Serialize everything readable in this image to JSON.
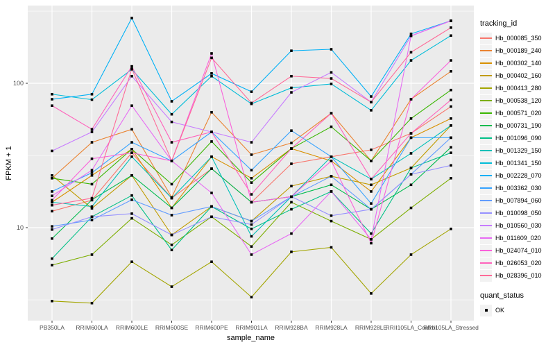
{
  "chart_data": {
    "type": "line",
    "title": "",
    "xlabel": "sample_name",
    "ylabel": "FPKM + 1",
    "legend_title": "tracking_id",
    "legend_position": "right",
    "grid": true,
    "y_scale": "log10",
    "ylim": [
      2.3,
      345
    ],
    "y_tick_values": [
      100,
      10
    ],
    "y_tick_labels": [
      "100",
      "10"
    ],
    "y_minor_gridlines": [
      316,
      31.6,
      3.16
    ],
    "point_shape": "square",
    "colors": {
      "panel_bg": "#EBEBEB",
      "grid": "#FFFFFF",
      "tick_text": "#4D4D4D",
      "tick_mark": "#333333",
      "axis_title_text": "#000000",
      "point": "#000000",
      "legend_key_bg": "#F2F2F2"
    },
    "categories": [
      "PB350LA",
      "RRIM600LA",
      "RRIM600LE",
      "RRIM600SE",
      "RRIM600PE",
      "RRIM901LA",
      "RRIM928BA",
      "RRIM928LA",
      "RRIM928LE",
      "RRII105LA_Control",
      "RRII105LA_Stressed"
    ],
    "series": [
      {
        "id": "Hb_000085_350",
        "color": "#F8766D",
        "quant_status": "OK",
        "values": [
          13.0,
          15.5,
          33,
          16,
          25.6,
          15,
          27.7,
          31,
          34.6,
          45,
          69
        ]
      },
      {
        "id": "Hb_000189_240",
        "color": "#EA8331",
        "quant_status": "OK",
        "values": [
          22,
          39,
          48,
          16.2,
          63,
          32,
          38.6,
          62,
          29,
          77.6,
          121
        ]
      },
      {
        "id": "Hb_000302_140",
        "color": "#D89000",
        "quant_status": "OK",
        "values": [
          15.0,
          23,
          35,
          13.7,
          31,
          22,
          35.3,
          29,
          17.8,
          42,
          57
        ]
      },
      {
        "id": "Hb_000402_160",
        "color": "#C09B00",
        "quant_status": "OK",
        "values": [
          23,
          13.6,
          23,
          8.9,
          14,
          11.1,
          19.4,
          22.7,
          19.8,
          25.9,
          51
        ]
      },
      {
        "id": "Hb_000413_280",
        "color": "#A3A500",
        "quant_status": "OK",
        "values": [
          3.1,
          3.0,
          5.8,
          3.9,
          5.8,
          3.3,
          6.8,
          7.3,
          3.5,
          6.5,
          9.8
        ]
      },
      {
        "id": "Hb_000538_120",
        "color": "#7CAE00",
        "quant_status": "OK",
        "values": [
          5.5,
          6.5,
          11.6,
          7.6,
          11.9,
          7.4,
          15,
          11.1,
          8.3,
          13.7,
          22
        ]
      },
      {
        "id": "Hb_000571_020",
        "color": "#39B600",
        "quant_status": "OK",
        "values": [
          22,
          20,
          35,
          20,
          39.5,
          20.5,
          35.3,
          50,
          29,
          57,
          89.8
        ]
      },
      {
        "id": "Hb_000731_190",
        "color": "#00BB4E",
        "quant_status": "OK",
        "values": [
          8.4,
          15.6,
          23,
          13.7,
          25.6,
          15,
          16.4,
          19.8,
          13.4,
          19.8,
          36
        ]
      },
      {
        "id": "Hb_001096_090",
        "color": "#00C087",
        "quant_status": "OK",
        "values": [
          6.1,
          11.9,
          16.7,
          7.0,
          14,
          9.8,
          13.4,
          17.8,
          9.1,
          25.9,
          33
        ]
      },
      {
        "id": "Hb_001329_150",
        "color": "#00C0B8",
        "quant_status": "OK",
        "values": [
          15.0,
          14,
          31,
          16,
          31,
          8.7,
          16.4,
          31,
          21.7,
          32.7,
          51
        ]
      },
      {
        "id": "Hb_001341_150",
        "color": "#00BCD8",
        "quant_status": "OK",
        "values": [
          84,
          77,
          125,
          61,
          112,
          72,
          93,
          99,
          65,
          144,
          214
        ]
      },
      {
        "id": "Hb_002228_070",
        "color": "#00B0F6",
        "quant_status": "OK",
        "values": [
          77.5,
          84,
          283,
          75,
          117,
          87.4,
          168,
          172,
          81,
          220,
          271
        ]
      },
      {
        "id": "Hb_003362_030",
        "color": "#35A2FF",
        "quant_status": "OK",
        "values": [
          17.8,
          24,
          39,
          29,
          46,
          25,
          47,
          31,
          14.7,
          42,
          42
        ]
      },
      {
        "id": "Hb_007894_060",
        "color": "#619CFF",
        "quant_status": "OK",
        "values": [
          10.2,
          11.3,
          15.6,
          12.2,
          14,
          11.1,
          16.4,
          22.7,
          13.4,
          23.4,
          42
        ]
      },
      {
        "id": "Hb_010098_050",
        "color": "#9590FF",
        "quant_status": "OK",
        "values": [
          9.7,
          11.9,
          12.5,
          8.9,
          11.9,
          10.5,
          16.4,
          12.1,
          13.4,
          23.4,
          27
        ]
      },
      {
        "id": "Hb_010560_030",
        "color": "#C77CFF",
        "quant_status": "OK",
        "values": [
          34,
          46,
          112,
          54,
          46,
          39,
          86.5,
          119,
          74,
          213,
          271
        ]
      },
      {
        "id": "Hb_011609_020",
        "color": "#E76BF3",
        "quant_status": "OK",
        "values": [
          16.6,
          25,
          70,
          29,
          17.4,
          6.5,
          9.1,
          17.8,
          8.3,
          213,
          271
        ]
      },
      {
        "id": "Hb_024074_010",
        "color": "#FA62DB",
        "quant_status": "OK",
        "values": [
          15.5,
          30,
          33,
          29,
          161,
          15,
          16.4,
          29,
          7.8,
          77.6,
          144
        ]
      },
      {
        "id": "Hb_026053_020",
        "color": "#FF62BC",
        "quant_status": "OK",
        "values": [
          70,
          48,
          131,
          39,
          46,
          17,
          35.3,
          62,
          21.7,
          45,
          76.7
        ]
      },
      {
        "id": "Hb_028396_010",
        "color": "#FF6A98",
        "quant_status": "OK",
        "values": [
          14.3,
          16,
          126,
          29,
          150,
          73,
          112,
          108,
          74,
          164,
          243
        ]
      }
    ],
    "legend2": {
      "title": "quant_status",
      "items": [
        {
          "label": "OK",
          "shape": "black-square"
        }
      ]
    }
  }
}
